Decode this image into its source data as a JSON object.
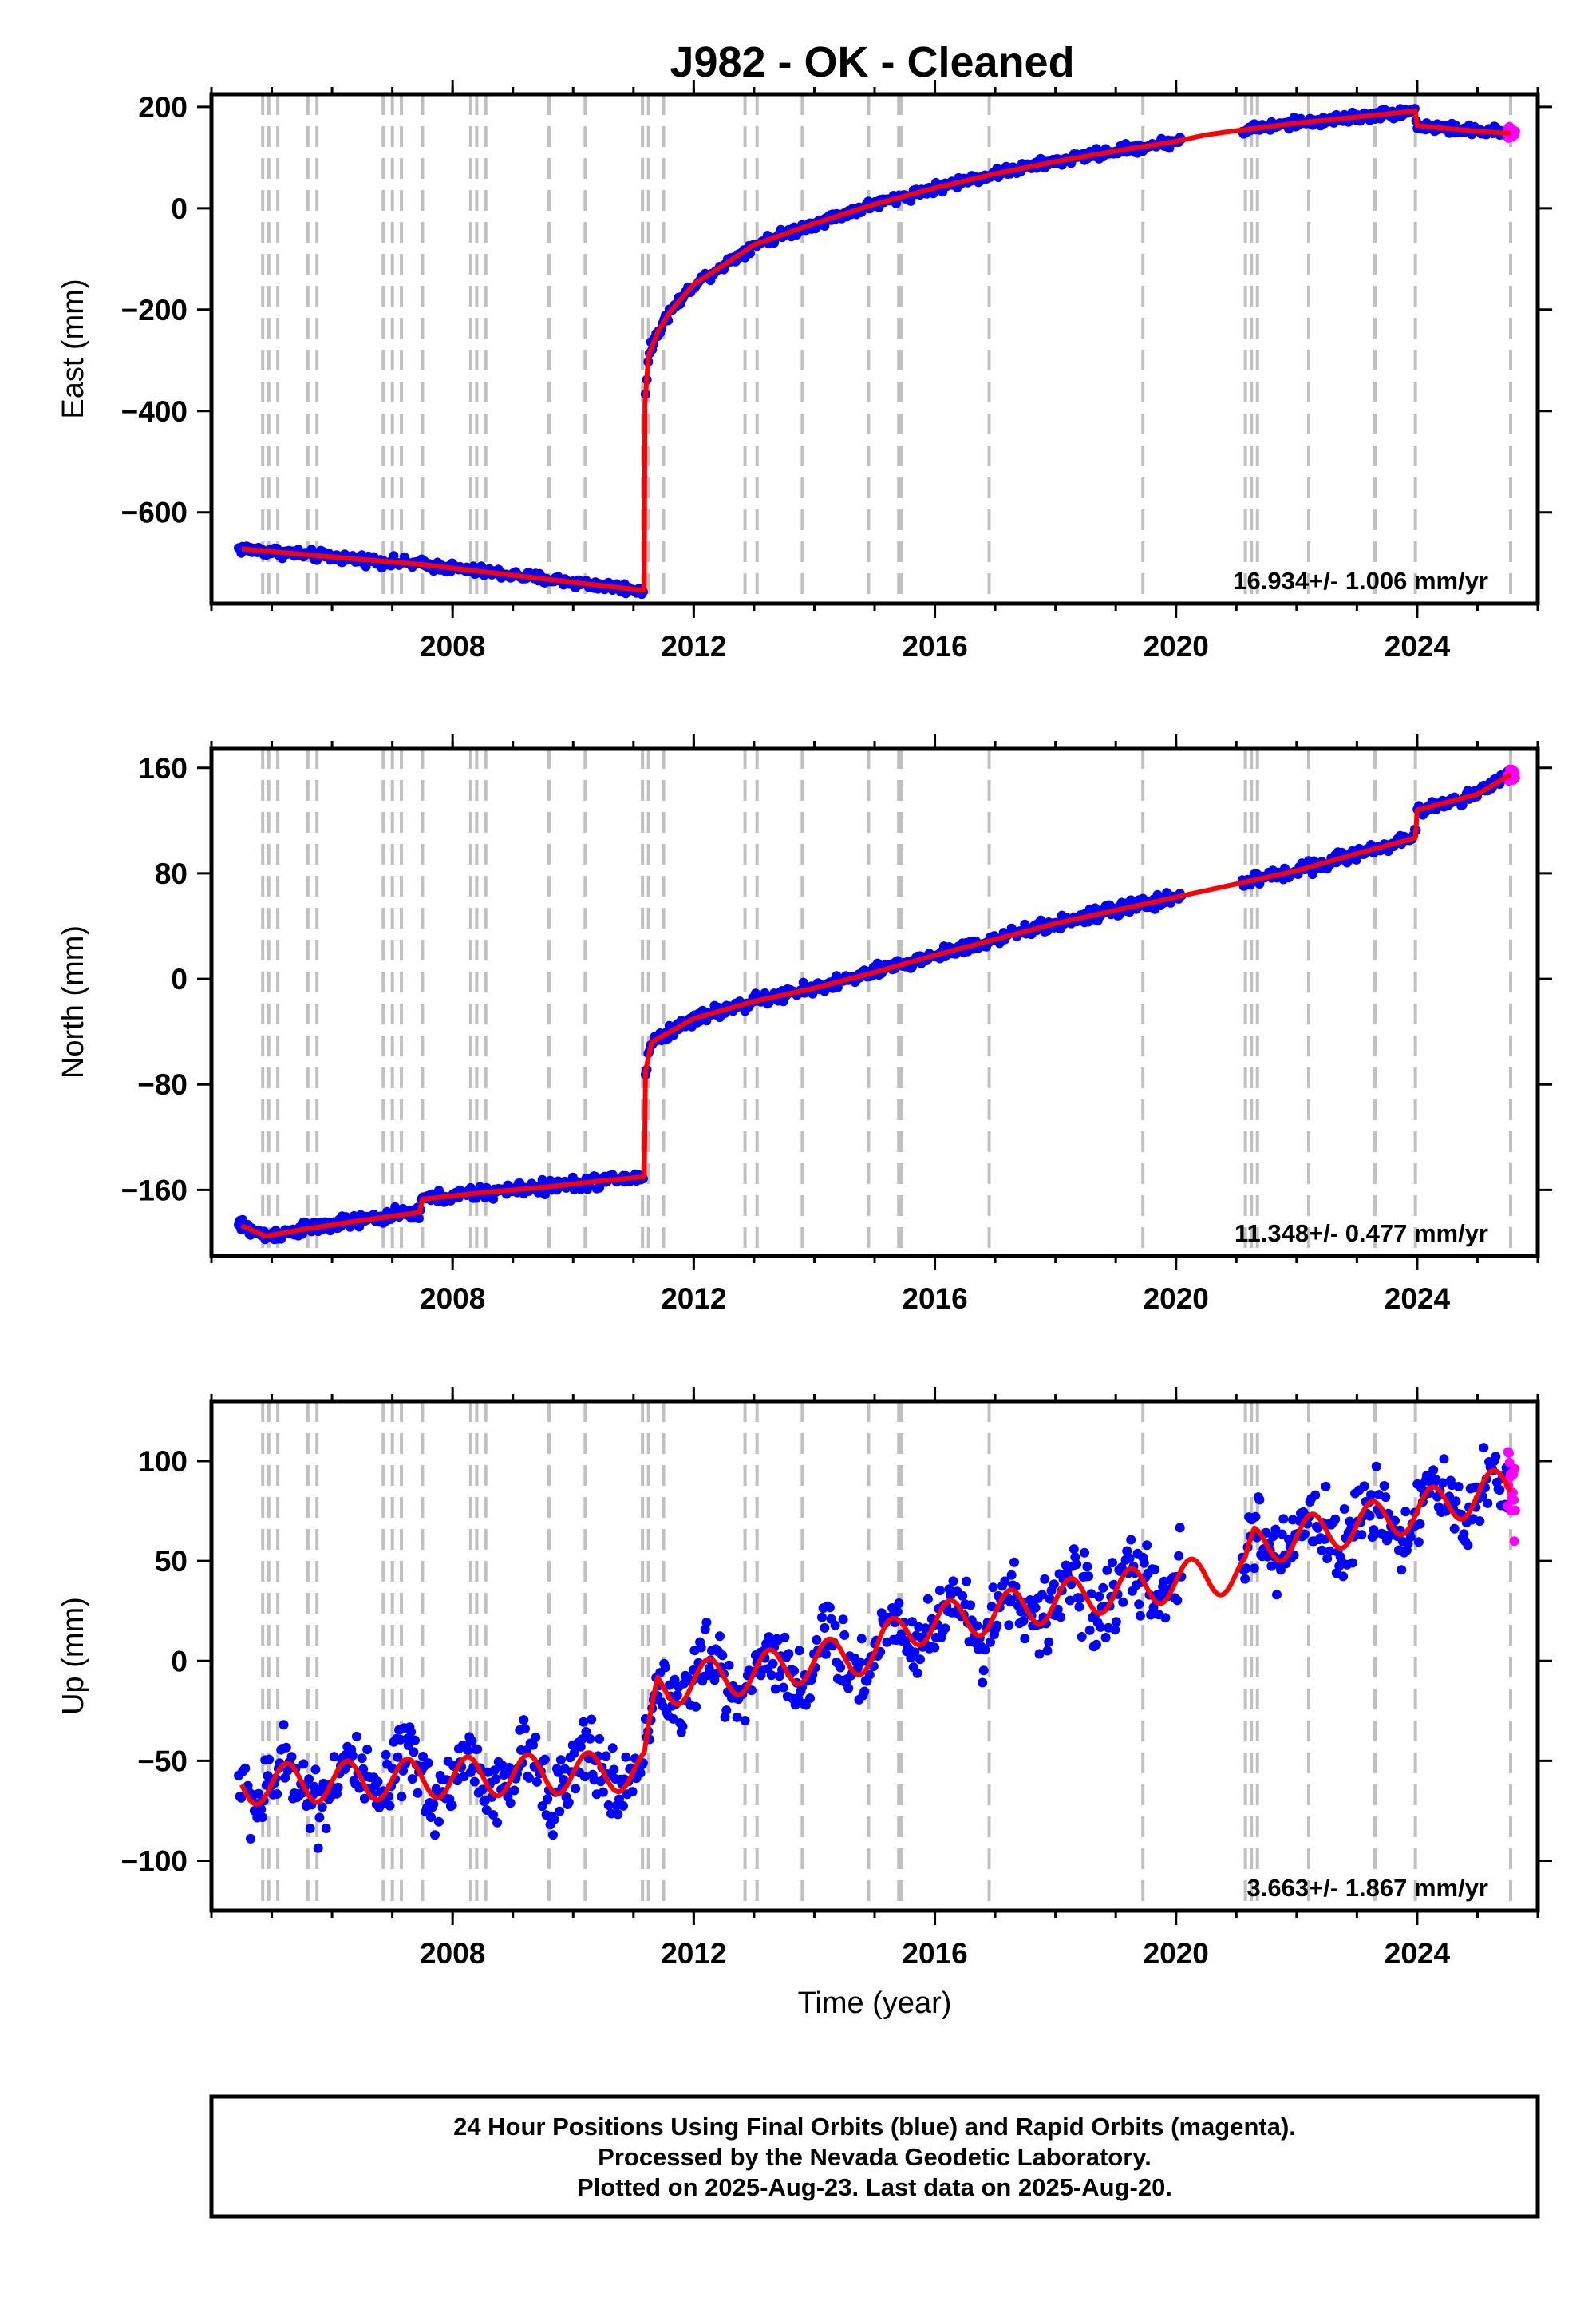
{
  "title": "J982  - OK - Cleaned",
  "chart_data": [
    {
      "type": "scatter",
      "component": "east",
      "ylabel": "East (mm)",
      "xlabel": "",
      "xlim": [
        2004.0,
        2026.0
      ],
      "ylim": [
        -780,
        225
      ],
      "xticks": [
        2008,
        2012,
        2016,
        2020,
        2024
      ],
      "yticks": [
        200,
        0,
        -200,
        -400,
        -600
      ],
      "rate_label": "16.934+/- 1.006 mm/yr",
      "legend": "none",
      "trend": [
        [
          2004.5,
          -672
        ],
        [
          2006.0,
          -688
        ],
        [
          2007.5,
          -703
        ],
        [
          2009.0,
          -724
        ],
        [
          2010.5,
          -745
        ],
        [
          2011.18,
          -754
        ],
        [
          2011.19,
          -385
        ],
        [
          2011.25,
          -290
        ],
        [
          2011.4,
          -245
        ],
        [
          2011.6,
          -205
        ],
        [
          2012.0,
          -150
        ],
        [
          2012.5,
          -112
        ],
        [
          2013.0,
          -72
        ],
        [
          2014.0,
          -30
        ],
        [
          2015.0,
          8
        ],
        [
          2016.0,
          40
        ],
        [
          2017.0,
          68
        ],
        [
          2018.0,
          92
        ],
        [
          2019.0,
          113
        ],
        [
          2020.0,
          132
        ],
        [
          2020.5,
          145
        ],
        [
          2021.0,
          153
        ],
        [
          2022.0,
          168
        ],
        [
          2023.0,
          180
        ],
        [
          2023.97,
          192
        ],
        [
          2024.0,
          163
        ],
        [
          2025.0,
          152
        ],
        [
          2025.55,
          148
        ]
      ],
      "series": [
        {
          "name": "Final Orbits",
          "color": "#0000ff",
          "segments": [
            [
              2004.45,
              2011.18
            ],
            [
              2011.2,
              2020.1
            ],
            [
              2021.1,
              2025.5
            ]
          ],
          "noise": 5
        },
        {
          "name": "Rapid Orbits",
          "color": "#ff00ff",
          "segments": [
            [
              2025.5,
              2025.63
            ]
          ],
          "noise": 5
        }
      ]
    },
    {
      "type": "scatter",
      "component": "north",
      "ylabel": "North (mm)",
      "xlabel": "",
      "xlim": [
        2004.0,
        2026.0
      ],
      "ylim": [
        -210,
        175
      ],
      "xticks": [
        2008,
        2012,
        2016,
        2020,
        2024
      ],
      "yticks": [
        160,
        80,
        0,
        -80,
        -160
      ],
      "rate_label": "11.348+/- 0.477 mm/yr",
      "legend": "none",
      "trend": [
        [
          2004.5,
          -187
        ],
        [
          2004.9,
          -195
        ],
        [
          2005.5,
          -190
        ],
        [
          2006.5,
          -183
        ],
        [
          2007.45,
          -177
        ],
        [
          2007.5,
          -167
        ],
        [
          2008.5,
          -162
        ],
        [
          2009.5,
          -158
        ],
        [
          2010.5,
          -153
        ],
        [
          2011.18,
          -150
        ],
        [
          2011.2,
          -70
        ],
        [
          2011.3,
          -48
        ],
        [
          2012.0,
          -30
        ],
        [
          2013.0,
          -17
        ],
        [
          2014.0,
          -7
        ],
        [
          2015.0,
          5
        ],
        [
          2016.0,
          18
        ],
        [
          2017.0,
          30
        ],
        [
          2018.0,
          42
        ],
        [
          2019.0,
          52
        ],
        [
          2020.0,
          62
        ],
        [
          2021.0,
          72
        ],
        [
          2022.0,
          82
        ],
        [
          2023.0,
          95
        ],
        [
          2023.97,
          107
        ],
        [
          2024.0,
          128
        ],
        [
          2025.0,
          140
        ],
        [
          2025.55,
          155
        ]
      ],
      "series": [
        {
          "name": "Final Orbits",
          "color": "#0000ff",
          "segments": [
            [
              2004.45,
              2011.18
            ],
            [
              2011.2,
              2020.1
            ],
            [
              2021.1,
              2025.5
            ]
          ],
          "noise": 2.5
        },
        {
          "name": "Rapid Orbits",
          "color": "#ff00ff",
          "segments": [
            [
              2025.5,
              2025.63
            ]
          ],
          "noise": 3
        }
      ]
    },
    {
      "type": "scatter",
      "component": "up",
      "ylabel": "Up (mm)",
      "xlabel": "Time (year)",
      "xlim": [
        2004.0,
        2026.0
      ],
      "ylim": [
        -125,
        130
      ],
      "xticks": [
        2008,
        2012,
        2016,
        2020,
        2024
      ],
      "yticks": [
        100,
        50,
        0,
        -50,
        -100
      ],
      "rate_label": "3.663+/- 1.867 mm/yr",
      "legend": "none",
      "trend": [
        [
          2004.5,
          -62
        ],
        [
          2011.18,
          -55
        ],
        [
          2011.4,
          -14
        ],
        [
          2012.0,
          -10
        ],
        [
          2013.0,
          -6
        ],
        [
          2014.0,
          0
        ],
        [
          2015.0,
          4
        ],
        [
          2015.5,
          17
        ],
        [
          2016.0,
          19
        ],
        [
          2017.0,
          24
        ],
        [
          2018.0,
          30
        ],
        [
          2019.0,
          35
        ],
        [
          2020.0,
          40
        ],
        [
          2021.0,
          44
        ],
        [
          2021.15,
          44
        ],
        [
          2021.3,
          57
        ],
        [
          2022.0,
          62
        ],
        [
          2023.0,
          68
        ],
        [
          2024.0,
          75
        ],
        [
          2025.0,
          83
        ],
        [
          2025.55,
          88
        ]
      ],
      "seasonal_amplitude": 10,
      "series": [
        {
          "name": "Final Orbits",
          "color": "#0000ff",
          "segments": [
            [
              2004.45,
              2011.18
            ],
            [
              2011.2,
              2020.1
            ],
            [
              2021.1,
              2025.5
            ]
          ],
          "noise": 9
        },
        {
          "name": "Rapid Orbits",
          "color": "#ff00ff",
          "segments": [
            [
              2025.5,
              2025.63
            ]
          ],
          "noise": 10
        }
      ]
    }
  ],
  "event_lines": [
    2004.85,
    2004.95,
    2005.1,
    2005.6,
    2005.75,
    2006.85,
    2007.0,
    2007.15,
    2007.5,
    2008.3,
    2008.4,
    2008.55,
    2009.6,
    2010.2,
    2011.15,
    2011.25,
    2011.5,
    2012.85,
    2013.05,
    2013.8,
    2014.9,
    2015.4,
    2015.45,
    2016.9,
    2019.45,
    2021.15,
    2021.25,
    2021.35,
    2022.2,
    2023.3,
    2023.97,
    2025.55
  ],
  "footer": {
    "line1": "24 Hour Positions Using Final Orbits (blue) and Rapid Orbits (magenta).",
    "line2": "Processed by the Nevada Geodetic Laboratory.",
    "line3": "Plotted on 2025-Aug-23. Last data on 2025-Aug-20."
  }
}
